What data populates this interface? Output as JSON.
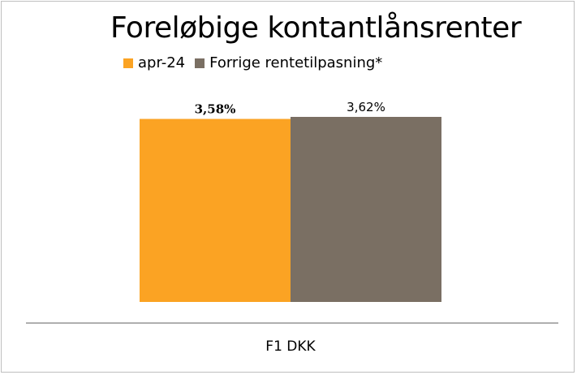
{
  "chart_data": {
    "type": "bar",
    "title": "Foreløbige kontantlånsrenter",
    "xlabel": "",
    "ylabel": "",
    "categories": [
      "F1 DKK"
    ],
    "series": [
      {
        "name": "apr-24",
        "values": [
          3.58
        ],
        "labels": [
          "3,58%"
        ],
        "color": "#FBA323",
        "label_bold": true
      },
      {
        "name": "Forrige rentetilpasning*",
        "values": [
          3.62
        ],
        "labels": [
          "3,62%"
        ],
        "color": "#7A6F63",
        "label_bold": false
      }
    ],
    "ylim": [
      0,
      3.62
    ],
    "grid": false,
    "legend": "top"
  }
}
